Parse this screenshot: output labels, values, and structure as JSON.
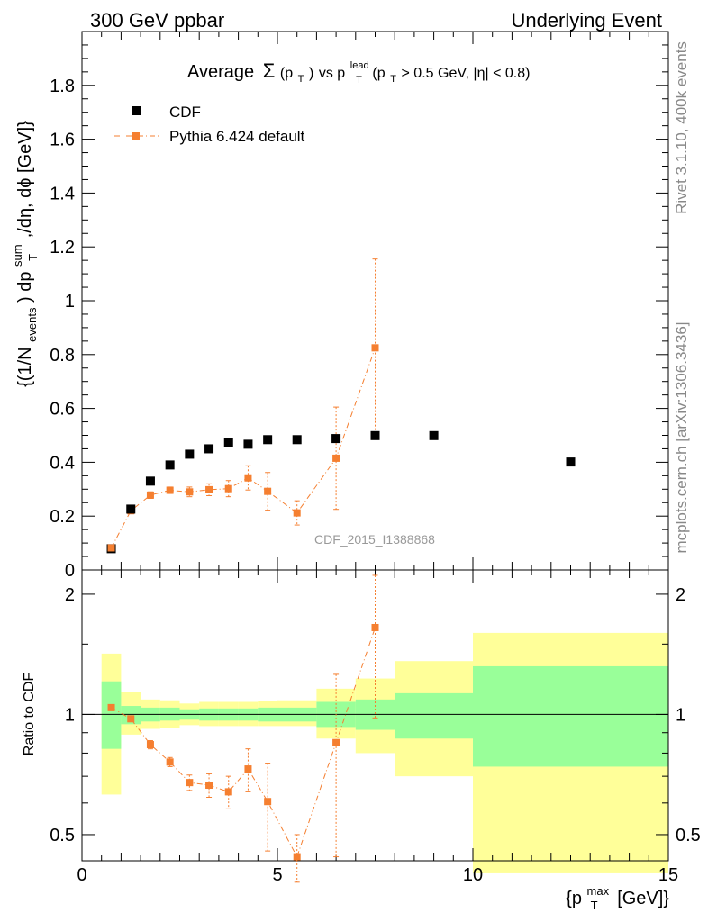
{
  "header": {
    "left": "300 GeV ppbar",
    "right": "Underlying Event"
  },
  "side_labels": {
    "rivet": "Rivet 3.1.10,  400k events",
    "mcplots": "mcplots.cern.ch [arXiv:1306.3436]"
  },
  "watermark": "CDF_2015_I1388868",
  "title": {
    "prefix": "Average",
    "sigma": "Σ",
    "sigma_arg": "(p",
    "sigma_sub": "T",
    "sigma_close": ")",
    "vs": " vs p",
    "lead_sup": "lead",
    "lead_sub": "T",
    "cuts_open": " (p",
    "cuts_sub": "T",
    "cuts_rest": " > 0.5 GeV, |η| < 0.8)"
  },
  "ylabel_main": {
    "part1": "{(1/N",
    "sub1": "events",
    "part2": ") dp",
    "sup2": "sum",
    "sub2": "T",
    "part3": " ,/dη, dϕ [GeV]}"
  },
  "ylabel_ratio": "Ratio to CDF",
  "xlabel": {
    "part1": "{p",
    "sup": "max",
    "sub": "T",
    "part2": " [GeV]}"
  },
  "legend": {
    "data_label": "CDF",
    "mc_label": "Pythia 6.424 default"
  },
  "colors": {
    "data": "#000000",
    "mc": "#f57f30",
    "band_inner": "#99ff99",
    "band_outer": "#ffff99",
    "watermark": "#999999"
  },
  "chart_data": {
    "type": "scatter",
    "x_unit": "GeV",
    "xlim": [
      0,
      15
    ],
    "main_ylim": [
      0,
      2.0
    ],
    "main_yticks": [
      0,
      0.2,
      0.4,
      0.6,
      0.8,
      1,
      1.2,
      1.4,
      1.6,
      1.8
    ],
    "main_ytick_labels": [
      "0",
      "0.2",
      "0.4",
      "0.6",
      "0.8",
      "1",
      "1.2",
      "1.4",
      "1.6",
      "1.8"
    ],
    "ratio_ylim": [
      0.43,
      2.3
    ],
    "ratio_log": true,
    "ratio_yticks": [
      0.5,
      1,
      2
    ],
    "ratio_ytick_labels": [
      "0.5",
      "1",
      "2"
    ],
    "xticks": [
      0,
      5,
      10,
      15
    ],
    "xtick_labels": [
      "0",
      "5",
      "10",
      "15"
    ],
    "series": [
      {
        "name": "CDF",
        "marker": "square",
        "bins": [
          [
            0.5,
            1.0
          ],
          [
            1.0,
            1.5
          ],
          [
            1.5,
            2.0
          ],
          [
            2.0,
            2.5
          ],
          [
            2.5,
            3.0
          ],
          [
            3.0,
            3.5
          ],
          [
            3.5,
            4.0
          ],
          [
            4.0,
            4.5
          ],
          [
            4.5,
            5.0
          ],
          [
            5.0,
            6.0
          ],
          [
            6.0,
            7.0
          ],
          [
            7.0,
            8.0
          ],
          [
            8.0,
            10.0
          ],
          [
            10.0,
            15.0
          ]
        ],
        "x": [
          0.75,
          1.25,
          1.75,
          2.25,
          2.75,
          3.25,
          3.75,
          4.25,
          4.75,
          5.5,
          6.5,
          7.5,
          9.0,
          12.5
        ],
        "y": [
          0.079,
          0.226,
          0.33,
          0.39,
          0.43,
          0.45,
          0.472,
          0.467,
          0.484,
          0.484,
          0.488,
          0.499,
          0.499,
          0.401
        ]
      },
      {
        "name": "Pythia 6.424 default",
        "marker": "square-line",
        "x": [
          0.75,
          1.25,
          1.75,
          2.25,
          2.75,
          3.25,
          3.75,
          4.25,
          4.75,
          5.5,
          6.5,
          7.5
        ],
        "y": [
          0.082,
          0.22,
          0.278,
          0.296,
          0.29,
          0.298,
          0.302,
          0.342,
          0.292,
          0.212,
          0.415,
          0.825
        ],
        "yerr": [
          0.004,
          0.006,
          0.012,
          0.012,
          0.018,
          0.022,
          0.03,
          0.045,
          0.07,
          0.045,
          0.19,
          0.33
        ],
        "ratio": [
          1.04,
          0.975,
          0.84,
          0.76,
          0.675,
          0.665,
          0.64,
          0.73,
          0.605,
          0.44,
          0.85,
          1.65
        ],
        "ratio_err_lo": [
          0.0,
          0.0,
          0.02,
          0.02,
          0.03,
          0.045,
          0.06,
          0.09,
          0.15,
          0.06,
          0.41,
          0.67
        ],
        "ratio_err_hi": [
          0.0,
          0.0,
          0.02,
          0.02,
          0.03,
          0.045,
          0.06,
          0.09,
          0.15,
          0.06,
          0.41,
          0.58
        ]
      }
    ],
    "ratio_bands": {
      "bins": [
        [
          0.5,
          1.0
        ],
        [
          1.0,
          1.5
        ],
        [
          1.5,
          2.0
        ],
        [
          2.0,
          2.5
        ],
        [
          2.5,
          3.0
        ],
        [
          3.0,
          3.5
        ],
        [
          3.5,
          4.0
        ],
        [
          4.0,
          4.5
        ],
        [
          4.5,
          5.0
        ],
        [
          5.0,
          6.0
        ],
        [
          6.0,
          7.0
        ],
        [
          7.0,
          8.0
        ],
        [
          8.0,
          10.0
        ],
        [
          10.0,
          15.0
        ]
      ],
      "inner_lo": [
        0.82,
        0.945,
        0.96,
        0.965,
        0.97,
        0.965,
        0.965,
        0.965,
        0.96,
        0.96,
        0.93,
        0.915,
        0.87,
        0.74
      ],
      "inner_hi": [
        1.21,
        1.05,
        1.04,
        1.04,
        1.03,
        1.035,
        1.035,
        1.035,
        1.04,
        1.04,
        1.075,
        1.09,
        1.13,
        1.32
      ],
      "outer_lo": [
        0.63,
        0.89,
        0.92,
        0.925,
        0.94,
        0.935,
        0.935,
        0.935,
        0.935,
        0.935,
        0.87,
        0.8,
        0.7,
        0.4
      ],
      "outer_hi": [
        1.42,
        1.14,
        1.09,
        1.085,
        1.065,
        1.075,
        1.075,
        1.075,
        1.08,
        1.085,
        1.16,
        1.23,
        1.36,
        1.6
      ]
    }
  }
}
